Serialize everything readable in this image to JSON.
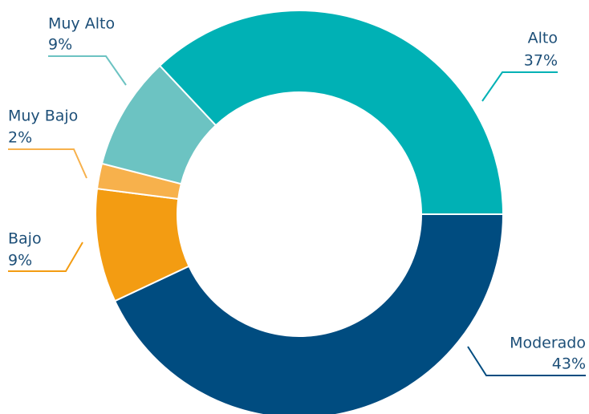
{
  "chart_data": {
    "type": "donut",
    "categories": [
      "Moderado",
      "Bajo",
      "Muy Bajo",
      "Muy Alto",
      "Alto"
    ],
    "values": [
      43,
      9,
      2,
      9,
      37
    ],
    "value_labels": [
      "43%",
      "9%",
      "2%",
      "9%",
      "37%"
    ],
    "colors": [
      "#004c80",
      "#f39c12",
      "#f7b14c",
      "#6cc3c2",
      "#00b1b5"
    ]
  }
}
